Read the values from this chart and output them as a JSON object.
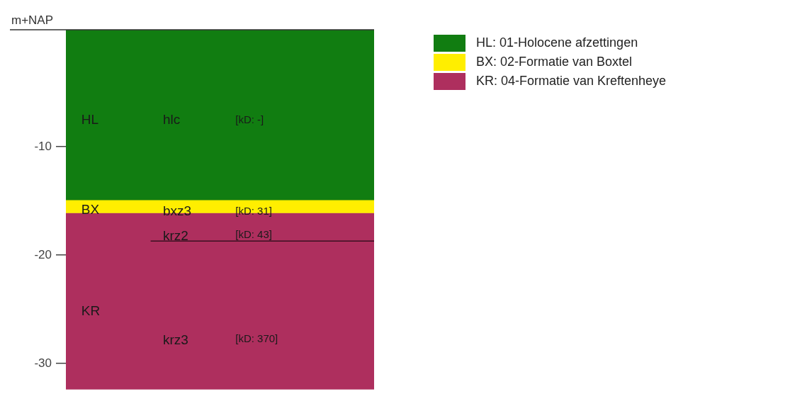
{
  "chart_data": {
    "type": "bar",
    "ylabel": "m+NAP",
    "categories": [
      null
    ],
    "series": [
      {
        "name": "HL: 01-Holocene afzettingen",
        "color": "#117d11",
        "base": [
          0.8
        ],
        "values": [
          -15.7
        ]
      },
      {
        "name": "BX: 02-Formatie van Boxtel",
        "color": "#ffee00",
        "base": [
          -14.9
        ],
        "values": [
          -1.2
        ]
      },
      {
        "name": "KR: 04-Formatie van Kreftenheye",
        "color": "#ae2f5e",
        "base": [
          -16.1
        ],
        "values": [
          -16.3
        ]
      }
    ],
    "ylim": [
      -32.4,
      0.8
    ],
    "yticks": [
      -10,
      -20,
      -30
    ],
    "legend": "right",
    "ref_lines": [
      {
        "axis": "y",
        "value": -18.7,
        "color": "#3a1020"
      }
    ],
    "annotations": [
      "HL",
      "hlc",
      "[kD: -]",
      "BX",
      "bxz3",
      "[kD: 31]",
      "krz2",
      "[kD: 43]",
      "KR",
      "krz3",
      "[kD: 370]"
    ]
  }
}
